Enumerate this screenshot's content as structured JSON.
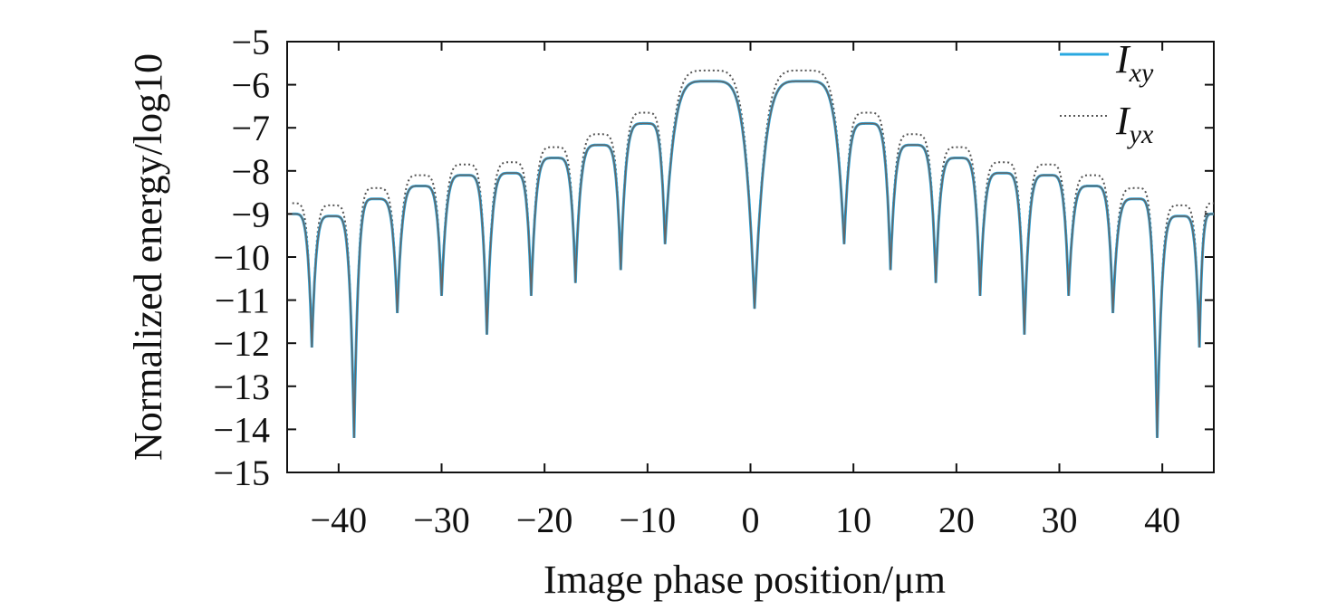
{
  "chart_data": {
    "type": "line",
    "xlabel": "Image phase position/μm",
    "ylabel": "Normalized energy/log10",
    "xlim": [
      -45,
      45
    ],
    "ylim": [
      -15,
      -5
    ],
    "xticks": [
      -40,
      -30,
      -20,
      -10,
      0,
      10,
      20,
      30,
      40
    ],
    "xtick_labels": [
      "−40",
      "−30",
      "−20",
      "−10",
      "0",
      "10",
      "20",
      "30",
      "40"
    ],
    "yticks": [
      -5,
      -6,
      -7,
      -8,
      -9,
      -10,
      -11,
      -12,
      -13,
      -14,
      -15
    ],
    "ytick_labels": [
      "−5",
      "−6",
      "−7",
      "−8",
      "−9",
      "−10",
      "−11",
      "−12",
      "−13",
      "−14",
      "−15"
    ],
    "grid": false,
    "legend_position": "top-right",
    "lobes": [
      {
        "x": -44.5,
        "y": -9.0
      },
      {
        "x": -40.6,
        "y": -9.05
      },
      {
        "x": -36.4,
        "y": -8.65
      },
      {
        "x": -32.0,
        "y": -8.35
      },
      {
        "x": -27.7,
        "y": -8.1
      },
      {
        "x": -23.2,
        "y": -8.05
      },
      {
        "x": -19.0,
        "y": -7.7
      },
      {
        "x": -14.6,
        "y": -7.4
      },
      {
        "x": -10.2,
        "y": -6.9
      },
      {
        "x": -4.0,
        "y": -5.92
      },
      {
        "x": 5.2,
        "y": -5.92
      },
      {
        "x": 11.4,
        "y": -6.9
      },
      {
        "x": 15.8,
        "y": -7.4
      },
      {
        "x": 20.2,
        "y": -7.7
      },
      {
        "x": 24.5,
        "y": -8.05
      },
      {
        "x": 28.9,
        "y": -8.1
      },
      {
        "x": 33.2,
        "y": -8.35
      },
      {
        "x": 37.5,
        "y": -8.65
      },
      {
        "x": 41.8,
        "y": -9.05
      },
      {
        "x": 45.0,
        "y": -9.0
      }
    ],
    "nulls": [
      {
        "x": -42.6,
        "y": -12.1
      },
      {
        "x": -38.5,
        "y": -14.2
      },
      {
        "x": -34.3,
        "y": -11.3
      },
      {
        "x": -30.0,
        "y": -10.9
      },
      {
        "x": -25.6,
        "y": -11.8
      },
      {
        "x": -21.3,
        "y": -10.9
      },
      {
        "x": -17.0,
        "y": -10.6
      },
      {
        "x": -12.6,
        "y": -10.3
      },
      {
        "x": -8.3,
        "y": -9.7
      },
      {
        "x": 0.4,
        "y": -11.2
      },
      {
        "x": 9.1,
        "y": -9.7
      },
      {
        "x": 13.6,
        "y": -10.3
      },
      {
        "x": 18.0,
        "y": -10.6
      },
      {
        "x": 22.3,
        "y": -10.9
      },
      {
        "x": 26.6,
        "y": -11.8
      },
      {
        "x": 30.9,
        "y": -10.9
      },
      {
        "x": 35.2,
        "y": -11.3
      },
      {
        "x": 39.5,
        "y": -14.2
      },
      {
        "x": 43.6,
        "y": -12.1
      }
    ],
    "series": [
      {
        "name": "I_xy",
        "label_main": "I",
        "label_sub": "xy",
        "style": "solid",
        "color": "#29a8e0",
        "offset": 0
      },
      {
        "name": "I_yx",
        "label_main": "I",
        "label_sub": "yx",
        "style": "dotted",
        "color": "#555555",
        "offset": 0.25
      }
    ]
  }
}
